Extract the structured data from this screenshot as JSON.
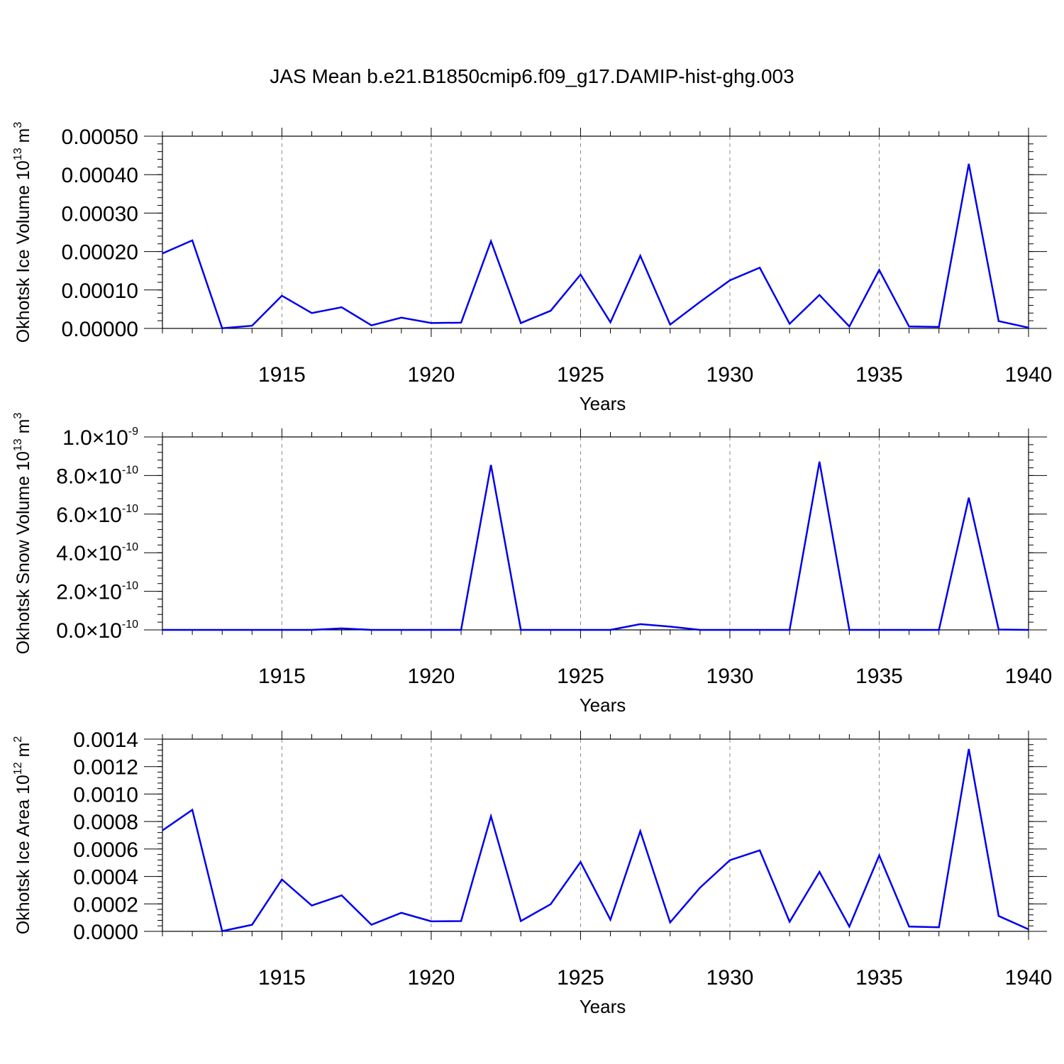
{
  "title": "JAS Mean b.e21.B1850cmip6.f09_g17.DAMIP-hist-ghg.003",
  "line_color": "#0000ee",
  "chart_data": [
    {
      "type": "line",
      "id": "ice-volume",
      "title": "JAS Mean b.e21.B1850cmip6.f09_g17.DAMIP-hist-ghg.003",
      "xlabel": "Years",
      "ylabel": {
        "main": "Okhotsk Ice Volume 10",
        "exp": "13",
        "unit": " m",
        "unit_exp": "3"
      },
      "xlim": [
        1911,
        1940
      ],
      "ylim": [
        0,
        0.0005
      ],
      "x_major_ticks": [
        1915,
        1920,
        1925,
        1930,
        1935,
        1940
      ],
      "x_tick_labels": [
        "1915",
        "1920",
        "1925",
        "1930",
        "1935",
        "1940"
      ],
      "y_major_ticks": [
        0,
        0.0001,
        0.0002,
        0.0003,
        0.0004,
        0.0005
      ],
      "y_tick_labels": [
        {
          "mant": "0.00000"
        },
        {
          "mant": "0.00010"
        },
        {
          "mant": "0.00020"
        },
        {
          "mant": "0.00030"
        },
        {
          "mant": "0.00040"
        },
        {
          "mant": "0.00050"
        }
      ],
      "y_minor_step": 2e-05,
      "grid": "vertical dashed at major x ticks",
      "x": [
        1911,
        1912,
        1913,
        1914,
        1915,
        1916,
        1917,
        1918,
        1919,
        1920,
        1921,
        1922,
        1923,
        1924,
        1925,
        1926,
        1927,
        1928,
        1929,
        1930,
        1931,
        1932,
        1933,
        1934,
        1935,
        1936,
        1937,
        1938,
        1939,
        1940
      ],
      "series": [
        {
          "name": "Okhotsk Ice Volume",
          "values": [
            0.000195,
            0.000229,
            5e-07,
            7e-06,
            8.5e-05,
            4e-05,
            5.5e-05,
            8e-06,
            2.8e-05,
            1.4e-05,
            1.5e-05,
            0.000227,
            1.4e-05,
            4.6e-05,
            0.00014,
            1.6e-05,
            0.000189,
            1e-05,
            6.9e-05,
            0.000125,
            0.000158,
            1.2e-05,
            8.7e-05,
            5e-06,
            0.000152,
            5e-06,
            4e-06,
            0.000428,
            1.9e-05,
            2e-06
          ]
        }
      ]
    },
    {
      "type": "line",
      "id": "snow-volume",
      "xlabel": "Years",
      "ylabel": {
        "main": "Okhotsk Snow Volume 10",
        "exp": "13",
        "unit": " m",
        "unit_exp": "3"
      },
      "xlim": [
        1911,
        1940
      ],
      "ylim": [
        0,
        1e-09
      ],
      "x_major_ticks": [
        1915,
        1920,
        1925,
        1930,
        1935,
        1940
      ],
      "x_tick_labels": [
        "1915",
        "1920",
        "1925",
        "1930",
        "1935",
        "1940"
      ],
      "y_major_ticks": [
        0,
        2e-10,
        4e-10,
        6e-10,
        8e-10,
        1e-09
      ],
      "y_tick_labels": [
        {
          "mant": "0.0",
          "times": "×",
          "base": "10",
          "exp": "-10"
        },
        {
          "mant": "2.0",
          "times": "×",
          "base": "10",
          "exp": "-10"
        },
        {
          "mant": "4.0",
          "times": "×",
          "base": "10",
          "exp": "-10"
        },
        {
          "mant": "6.0",
          "times": "×",
          "base": "10",
          "exp": "-10"
        },
        {
          "mant": "8.0",
          "times": "×",
          "base": "10",
          "exp": "-10"
        },
        {
          "mant": "1.0",
          "times": "×",
          "base": "10",
          "exp": "-9"
        }
      ],
      "y_minor_step": 4e-11,
      "grid": "vertical dashed at major x ticks",
      "x": [
        1911,
        1912,
        1913,
        1914,
        1915,
        1916,
        1917,
        1918,
        1919,
        1920,
        1921,
        1922,
        1923,
        1924,
        1925,
        1926,
        1927,
        1928,
        1929,
        1930,
        1931,
        1932,
        1933,
        1934,
        1935,
        1936,
        1937,
        1938,
        1939,
        1940
      ],
      "series": [
        {
          "name": "Okhotsk Snow Volume",
          "values": [
            0,
            0,
            0,
            0,
            0,
            0,
            8e-12,
            0,
            0,
            0,
            0,
            8.55e-10,
            0,
            0,
            0,
            0,
            3e-11,
            1.7e-11,
            0,
            0,
            0,
            0,
            8.72e-10,
            0,
            0,
            0,
            0,
            6.85e-10,
            2e-12,
            0
          ]
        }
      ]
    },
    {
      "type": "line",
      "id": "ice-area",
      "xlabel": "Years",
      "ylabel": {
        "main": "Okhotsk Ice Area 10",
        "exp": "12",
        "unit": " m",
        "unit_exp": "2"
      },
      "xlim": [
        1911,
        1940
      ],
      "ylim": [
        0,
        0.0014
      ],
      "x_major_ticks": [
        1915,
        1920,
        1925,
        1930,
        1935,
        1940
      ],
      "x_tick_labels": [
        "1915",
        "1920",
        "1925",
        "1930",
        "1935",
        "1940"
      ],
      "y_major_ticks": [
        0,
        0.0002,
        0.0004,
        0.0006,
        0.0008,
        0.001,
        0.0012,
        0.0014
      ],
      "y_tick_labels": [
        {
          "mant": "0.0000"
        },
        {
          "mant": "0.0002"
        },
        {
          "mant": "0.0004"
        },
        {
          "mant": "0.0006"
        },
        {
          "mant": "0.0008"
        },
        {
          "mant": "0.0010"
        },
        {
          "mant": "0.0012"
        },
        {
          "mant": "0.0014"
        }
      ],
      "y_minor_step": 4e-05,
      "grid": "vertical dashed at major x ticks",
      "x": [
        1911,
        1912,
        1913,
        1914,
        1915,
        1916,
        1917,
        1918,
        1919,
        1920,
        1921,
        1922,
        1923,
        1924,
        1925,
        1926,
        1927,
        1928,
        1929,
        1930,
        1931,
        1932,
        1933,
        1934,
        1935,
        1936,
        1937,
        1938,
        1939,
        1940
      ],
      "series": [
        {
          "name": "Okhotsk Ice Area",
          "values": [
            0.000735,
            0.000885,
            2e-06,
            4.8e-05,
            0.000378,
            0.000188,
            0.000262,
            4.8e-05,
            0.000135,
            7.3e-05,
            7.5e-05,
            0.000838,
            7.5e-05,
            0.000198,
            0.000505,
            8.5e-05,
            0.00073,
            6.5e-05,
            0.000318,
            0.000518,
            0.00059,
            7e-05,
            0.000433,
            3.5e-05,
            0.000553,
            3.5e-05,
            3e-05,
            0.001328,
            0.000112,
            1.5e-05
          ]
        }
      ]
    }
  ]
}
